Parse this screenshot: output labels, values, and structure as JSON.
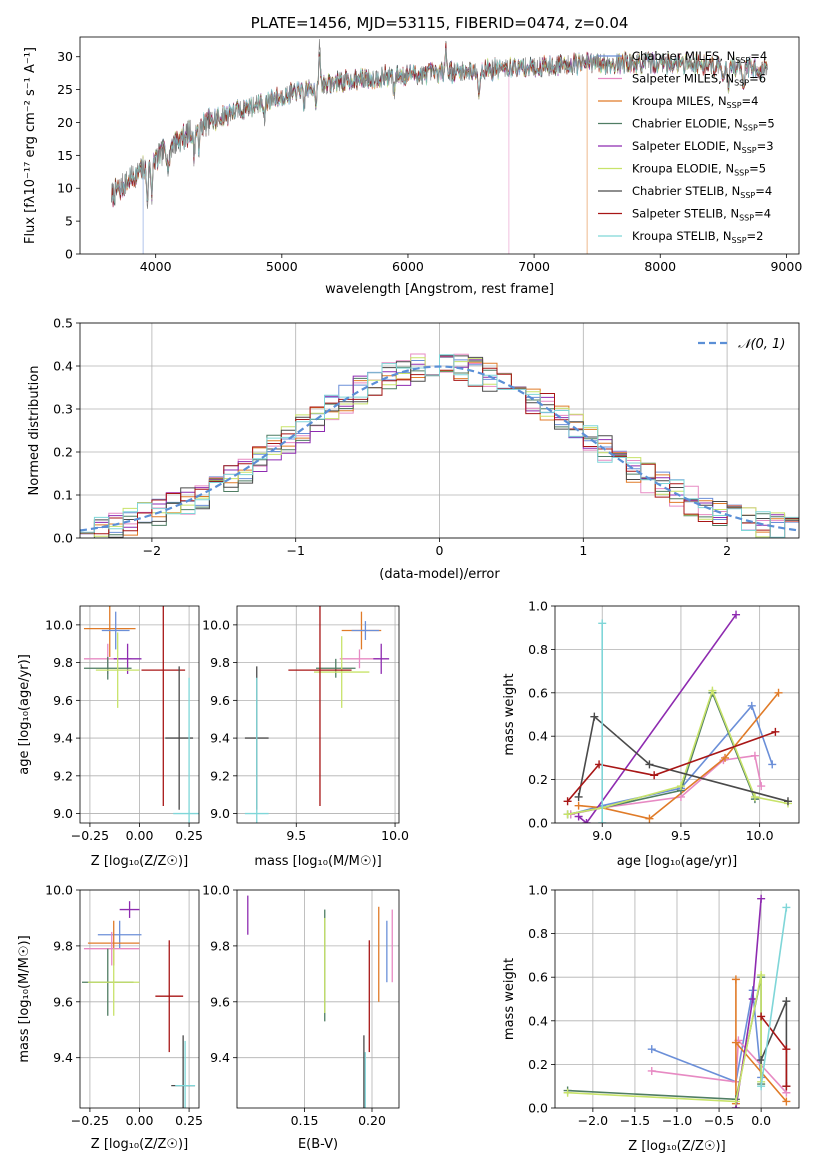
{
  "colors": {
    "chabrier_miles": "#6b8fd8",
    "salpeter_miles": "#e78ac3",
    "kroupa_miles": "#e07b28",
    "chabrier_elodie": "#4f7d63",
    "salpeter_elodie": "#8e2bb0",
    "kroupa_elodie": "#c8e36a",
    "chabrier_stelib": "#4a4a4a",
    "salpeter_stelib": "#a81616",
    "kroupa_stelib": "#7fd6d8",
    "normal": "#5b8fd6"
  },
  "legend_models": [
    {
      "key": "chabrier_miles",
      "text": "Chabrier MILES, N",
      "sub": "SSP",
      "tail": "=4"
    },
    {
      "key": "salpeter_miles",
      "text": "Salpeter MILES, N",
      "sub": "SSP",
      "tail": "=6"
    },
    {
      "key": "kroupa_miles",
      "text": "Kroupa MILES, N",
      "sub": "SSP",
      "tail": "=4"
    },
    {
      "key": "chabrier_elodie",
      "text": "Chabrier ELODIE, N",
      "sub": "SSP",
      "tail": "=5"
    },
    {
      "key": "salpeter_elodie",
      "text": "Salpeter ELODIE, N",
      "sub": "SSP",
      "tail": "=3"
    },
    {
      "key": "kroupa_elodie",
      "text": "Kroupa ELODIE, N",
      "sub": "SSP",
      "tail": "=5"
    },
    {
      "key": "chabrier_stelib",
      "text": "Chabrier STELIB, N",
      "sub": "SSP",
      "tail": "=4"
    },
    {
      "key": "salpeter_stelib",
      "text": "Salpeter STELIB, N",
      "sub": "SSP",
      "tail": "=4"
    },
    {
      "key": "kroupa_stelib",
      "text": "Kroupa STELIB, N",
      "sub": "SSP",
      "tail": "=2"
    }
  ],
  "chart_data": [
    {
      "type": "line",
      "title": "PLATE=1456, MJD=53115, FIBERID=0474, z=0.04",
      "xlabel": "wavelength [Angstrom, rest frame]",
      "ylabel": "Flux [fλ10⁻¹⁷ erg cm⁻² s⁻¹ A⁻¹]",
      "xlim": [
        3400,
        9100
      ],
      "ylim": [
        0,
        33
      ],
      "xticks": [
        "4000",
        "5000",
        "6000",
        "7000",
        "8000",
        "9000"
      ],
      "yticks": [
        "0",
        "5",
        "10",
        "15",
        "20",
        "25",
        "30"
      ],
      "continuum": {
        "x": [
          3650,
          3900,
          4100,
          4300,
          4600,
          5000,
          5400,
          5800,
          6200,
          6600,
          7000,
          7400,
          7800,
          8200,
          8600,
          8850
        ],
        "y": [
          9,
          13,
          16,
          19,
          21.5,
          24,
          26,
          27,
          27.5,
          28,
          28.5,
          29,
          29,
          29,
          28.5,
          28
        ]
      },
      "model_drops_at": [
        3900,
        6800,
        7420
      ]
    },
    {
      "type": "histogram",
      "xlabel": "(data-model)/error",
      "ylabel": "Normed distribution",
      "xlim": [
        -2.5,
        2.5
      ],
      "ylim": [
        0,
        0.5
      ],
      "xticks": [
        "−2",
        "−1",
        "0",
        "1",
        "2"
      ],
      "yticks": [
        "0.0",
        "0.1",
        "0.2",
        "0.3",
        "0.4",
        "0.5"
      ],
      "bin_width": 0.1,
      "reference": {
        "name": "𝒩(0, 1)",
        "mean": 0,
        "sigma": 1
      }
    },
    {
      "type": "scatter",
      "xlabel": "Z [log₁₀(Z/Z☉)]",
      "ylabel": "age  [log₁₀(age/yr)]",
      "xlim": [
        -0.3,
        0.3
      ],
      "ylim": [
        8.95,
        10.1
      ],
      "xticks": [
        "−0.25",
        "0.00",
        "0.25"
      ],
      "yticks": [
        "9.0",
        "9.2",
        "9.4",
        "9.6",
        "9.8",
        "10.0"
      ],
      "points": [
        {
          "key": "kroupa_miles",
          "x": -0.15,
          "y": 9.98,
          "xerr": 0.13,
          "yerr": 0.15
        },
        {
          "key": "chabrier_miles",
          "x": -0.12,
          "y": 9.97,
          "xerr": 0.07,
          "yerr": 0.1
        },
        {
          "key": "salpeter_miles",
          "x": -0.16,
          "y": 9.82,
          "xerr": 0.12,
          "yerr": 0.08
        },
        {
          "key": "salpeter_elodie",
          "x": -0.06,
          "y": 9.82,
          "xerr": 0.07,
          "yerr": 0.08
        },
        {
          "key": "chabrier_elodie",
          "x": -0.16,
          "y": 9.77,
          "xerr": 0.12,
          "yerr": 0.06
        },
        {
          "key": "kroupa_elodie",
          "x": -0.11,
          "y": 9.76,
          "xerr": 0.11,
          "yerr": 0.2
        },
        {
          "key": "salpeter_stelib",
          "x": 0.12,
          "y": 9.76,
          "xerr": 0.11,
          "yerr": 0.72
        },
        {
          "key": "chabrier_stelib",
          "x": 0.2,
          "y": 9.4,
          "xerr": 0.07,
          "yerr": 0.38
        },
        {
          "key": "kroupa_stelib",
          "x": 0.25,
          "y": 9.0,
          "xerr": 0.08,
          "yerr": 0.72
        }
      ]
    },
    {
      "type": "scatter",
      "xlabel": "mass [log₁₀(M/M☉)]",
      "ylabel": "",
      "xlim": [
        9.2,
        10.02
      ],
      "ylim": [
        8.95,
        10.1
      ],
      "xticks": [
        "9.5",
        "10.0"
      ],
      "yticks": [
        "9.0",
        "9.2",
        "9.4",
        "9.6",
        "9.8",
        "10.0"
      ],
      "points": [
        {
          "key": "kroupa_miles",
          "x": 9.83,
          "y": 9.97,
          "xerr": 0.1,
          "yerr": 0.1
        },
        {
          "key": "chabrier_miles",
          "x": 9.85,
          "y": 9.97,
          "xerr": 0.07,
          "yerr": 0.05
        },
        {
          "key": "salpeter_miles",
          "x": 9.82,
          "y": 9.82,
          "xerr": 0.1,
          "yerr": 0.05
        },
        {
          "key": "salpeter_elodie",
          "x": 9.93,
          "y": 9.82,
          "xerr": 0.04,
          "yerr": 0.08
        },
        {
          "key": "chabrier_elodie",
          "x": 9.7,
          "y": 9.77,
          "xerr": 0.1,
          "yerr": 0.05
        },
        {
          "key": "kroupa_elodie",
          "x": 9.73,
          "y": 9.75,
          "xerr": 0.14,
          "yerr": 0.19
        },
        {
          "key": "salpeter_stelib",
          "x": 9.62,
          "y": 9.76,
          "xerr": 0.16,
          "yerr": 0.72
        },
        {
          "key": "chabrier_stelib",
          "x": 9.3,
          "y": 9.4,
          "xerr": 0.06,
          "yerr": 0.38
        },
        {
          "key": "kroupa_stelib",
          "x": 9.3,
          "y": 9.0,
          "xerr": 0.06,
          "yerr": 0.72
        }
      ]
    },
    {
      "type": "line",
      "xlabel": "age  [log₁₀(age/yr)]",
      "ylabel": "mass weight",
      "xlim": [
        8.7,
        10.25
      ],
      "ylim": [
        0,
        1
      ],
      "xticks": [
        "9.0",
        "9.5",
        "10.0"
      ],
      "yticks": [
        "0.0",
        "0.2",
        "0.4",
        "0.6",
        "0.8",
        "1.0"
      ],
      "series": [
        {
          "key": "chabrier_miles",
          "x": [
            8.8,
            9.0,
            9.5,
            9.95,
            10.08
          ],
          "y": [
            0.04,
            0.08,
            0.16,
            0.54,
            0.27
          ]
        },
        {
          "key": "salpeter_miles",
          "x": [
            8.8,
            9.0,
            9.5,
            9.77,
            9.97,
            10.01
          ],
          "y": [
            0.04,
            0.07,
            0.12,
            0.29,
            0.31,
            0.17
          ]
        },
        {
          "key": "kroupa_miles",
          "x": [
            8.85,
            9.0,
            9.3,
            9.78,
            10.12
          ],
          "y": [
            0.08,
            0.07,
            0.02,
            0.3,
            0.6
          ]
        },
        {
          "key": "chabrier_elodie",
          "x": [
            8.78,
            9.0,
            9.5,
            9.7,
            9.97
          ],
          "y": [
            0.04,
            0.07,
            0.15,
            0.6,
            0.11
          ]
        },
        {
          "key": "salpeter_elodie",
          "x": [
            8.85,
            8.9,
            9.85
          ],
          "y": [
            0.03,
            0.0,
            0.96
          ]
        },
        {
          "key": "kroupa_elodie",
          "x": [
            8.78,
            9.0,
            9.5,
            9.7,
            9.97,
            10.18
          ],
          "y": [
            0.04,
            0.07,
            0.17,
            0.61,
            0.12,
            0.09
          ]
        },
        {
          "key": "chabrier_stelib",
          "x": [
            8.85,
            8.95,
            9.3,
            10.18
          ],
          "y": [
            0.12,
            0.49,
            0.27,
            0.1
          ]
        },
        {
          "key": "salpeter_stelib",
          "x": [
            8.78,
            8.98,
            9.33,
            10.1
          ],
          "y": [
            0.1,
            0.27,
            0.22,
            0.42
          ]
        },
        {
          "key": "kroupa_stelib",
          "x": [
            9.0,
            9.0
          ],
          "y": [
            0.0,
            0.92
          ]
        }
      ]
    },
    {
      "type": "scatter",
      "xlabel": "Z [log₁₀(Z/Z☉)]",
      "ylabel": "mass [log₁₀(M/M☉)]",
      "xlim": [
        -0.3,
        0.3
      ],
      "ylim": [
        9.22,
        10.0
      ],
      "xticks": [
        "−0.25",
        "0.00",
        "0.25"
      ],
      "yticks": [
        "9.4",
        "9.6",
        "9.8",
        "10.0"
      ],
      "points": [
        {
          "key": "salpeter_elodie",
          "x": -0.05,
          "y": 9.93,
          "xerr": 0.05,
          "yerr": 0.03
        },
        {
          "key": "chabrier_miles",
          "x": -0.1,
          "y": 9.84,
          "xerr": 0.11,
          "yerr": 0.05
        },
        {
          "key": "kroupa_miles",
          "x": -0.13,
          "y": 9.81,
          "xerr": 0.13,
          "yerr": 0.08
        },
        {
          "key": "salpeter_miles",
          "x": -0.14,
          "y": 9.79,
          "xerr": 0.14,
          "yerr": 0.06
        },
        {
          "key": "chabrier_elodie",
          "x": -0.16,
          "y": 9.67,
          "xerr": 0.13,
          "yerr": 0.12
        },
        {
          "key": "kroupa_elodie",
          "x": -0.13,
          "y": 9.67,
          "xerr": 0.13,
          "yerr": 0.12
        },
        {
          "key": "salpeter_stelib",
          "x": 0.15,
          "y": 9.62,
          "xerr": 0.07,
          "yerr": 0.2
        },
        {
          "key": "chabrier_stelib",
          "x": 0.22,
          "y": 9.3,
          "xerr": 0.06,
          "yerr": 0.18
        },
        {
          "key": "kroupa_stelib",
          "x": 0.23,
          "y": 9.3,
          "xerr": 0.05,
          "yerr": 0.16
        }
      ]
    },
    {
      "type": "scatter",
      "xlabel": "E(B-V)",
      "ylabel": "",
      "xlim": [
        0.1,
        0.22
      ],
      "ylim": [
        9.22,
        10.0
      ],
      "xticks": [
        "0.15",
        "0.20"
      ],
      "yticks": [
        "9.4",
        "9.6",
        "9.8",
        "10.0"
      ],
      "points": [
        {
          "key": "salpeter_elodie",
          "x": 0.108,
          "y": 9.91,
          "xerr": 0,
          "yerr": 0.07
        },
        {
          "key": "chabrier_elodie",
          "x": 0.165,
          "y": 9.73,
          "xerr": 0,
          "yerr": 0.2
        },
        {
          "key": "kroupa_elodie",
          "x": 0.165,
          "y": 9.73,
          "xerr": 0,
          "yerr": 0.17
        },
        {
          "key": "salpeter_stelib",
          "x": 0.198,
          "y": 9.62,
          "xerr": 0,
          "yerr": 0.2
        },
        {
          "key": "chabrier_stelib",
          "x": 0.194,
          "y": 9.34,
          "xerr": 0,
          "yerr": 0.14
        },
        {
          "key": "kroupa_stelib",
          "x": 0.195,
          "y": 9.3,
          "xerr": 0,
          "yerr": 0.12
        },
        {
          "key": "kroupa_miles",
          "x": 0.205,
          "y": 9.77,
          "xerr": 0,
          "yerr": 0.17
        },
        {
          "key": "chabrier_miles",
          "x": 0.211,
          "y": 9.78,
          "xerr": 0,
          "yerr": 0.11
        },
        {
          "key": "salpeter_miles",
          "x": 0.215,
          "y": 9.8,
          "xerr": 0,
          "yerr": 0.13
        }
      ]
    },
    {
      "type": "line",
      "xlabel": "Z [log₁₀(Z/Z☉)]",
      "ylabel": "mass weight",
      "xlim": [
        -2.45,
        0.45
      ],
      "ylim": [
        0,
        1
      ],
      "xticks": [
        "−2.0",
        "−1.5",
        "−1.0",
        "−0.5",
        "0.0"
      ],
      "yticks": [
        "0.0",
        "0.2",
        "0.4",
        "0.6",
        "0.8",
        "1.0"
      ],
      "series": [
        {
          "key": "chabrier_miles",
          "x": [
            -1.3,
            -0.3,
            -0.1,
            0.0
          ],
          "y": [
            0.27,
            0.12,
            0.54,
            0.14
          ]
        },
        {
          "key": "salpeter_miles",
          "x": [
            -1.3,
            -0.3,
            -0.27,
            0.3
          ],
          "y": [
            0.17,
            0.12,
            0.31,
            0.07
          ]
        },
        {
          "key": "kroupa_miles",
          "x": [
            -0.3,
            -0.3,
            -0.3,
            0.3
          ],
          "y": [
            0.02,
            0.59,
            0.3,
            0.03
          ]
        },
        {
          "key": "chabrier_elodie",
          "x": [
            -2.3,
            -0.3,
            0.0,
            0.0
          ],
          "y": [
            0.08,
            0.04,
            0.6,
            0.11
          ]
        },
        {
          "key": "salpeter_elodie",
          "x": [
            -0.3,
            -0.1,
            0.0
          ],
          "y": [
            0.0,
            0.5,
            0.96
          ]
        },
        {
          "key": "kroupa_elodie",
          "x": [
            -2.3,
            -0.3,
            0.0,
            0.0
          ],
          "y": [
            0.07,
            0.03,
            0.61,
            0.12
          ]
        },
        {
          "key": "chabrier_stelib",
          "x": [
            0.0,
            0.3,
            0.3
          ],
          "y": [
            0.22,
            0.49,
            0.1
          ]
        },
        {
          "key": "salpeter_stelib",
          "x": [
            0.0,
            0.3,
            0.3
          ],
          "y": [
            0.42,
            0.27,
            0.1
          ]
        },
        {
          "key": "kroupa_stelib",
          "x": [
            0.0,
            0.3
          ],
          "y": [
            0.1,
            0.92
          ]
        }
      ]
    }
  ]
}
